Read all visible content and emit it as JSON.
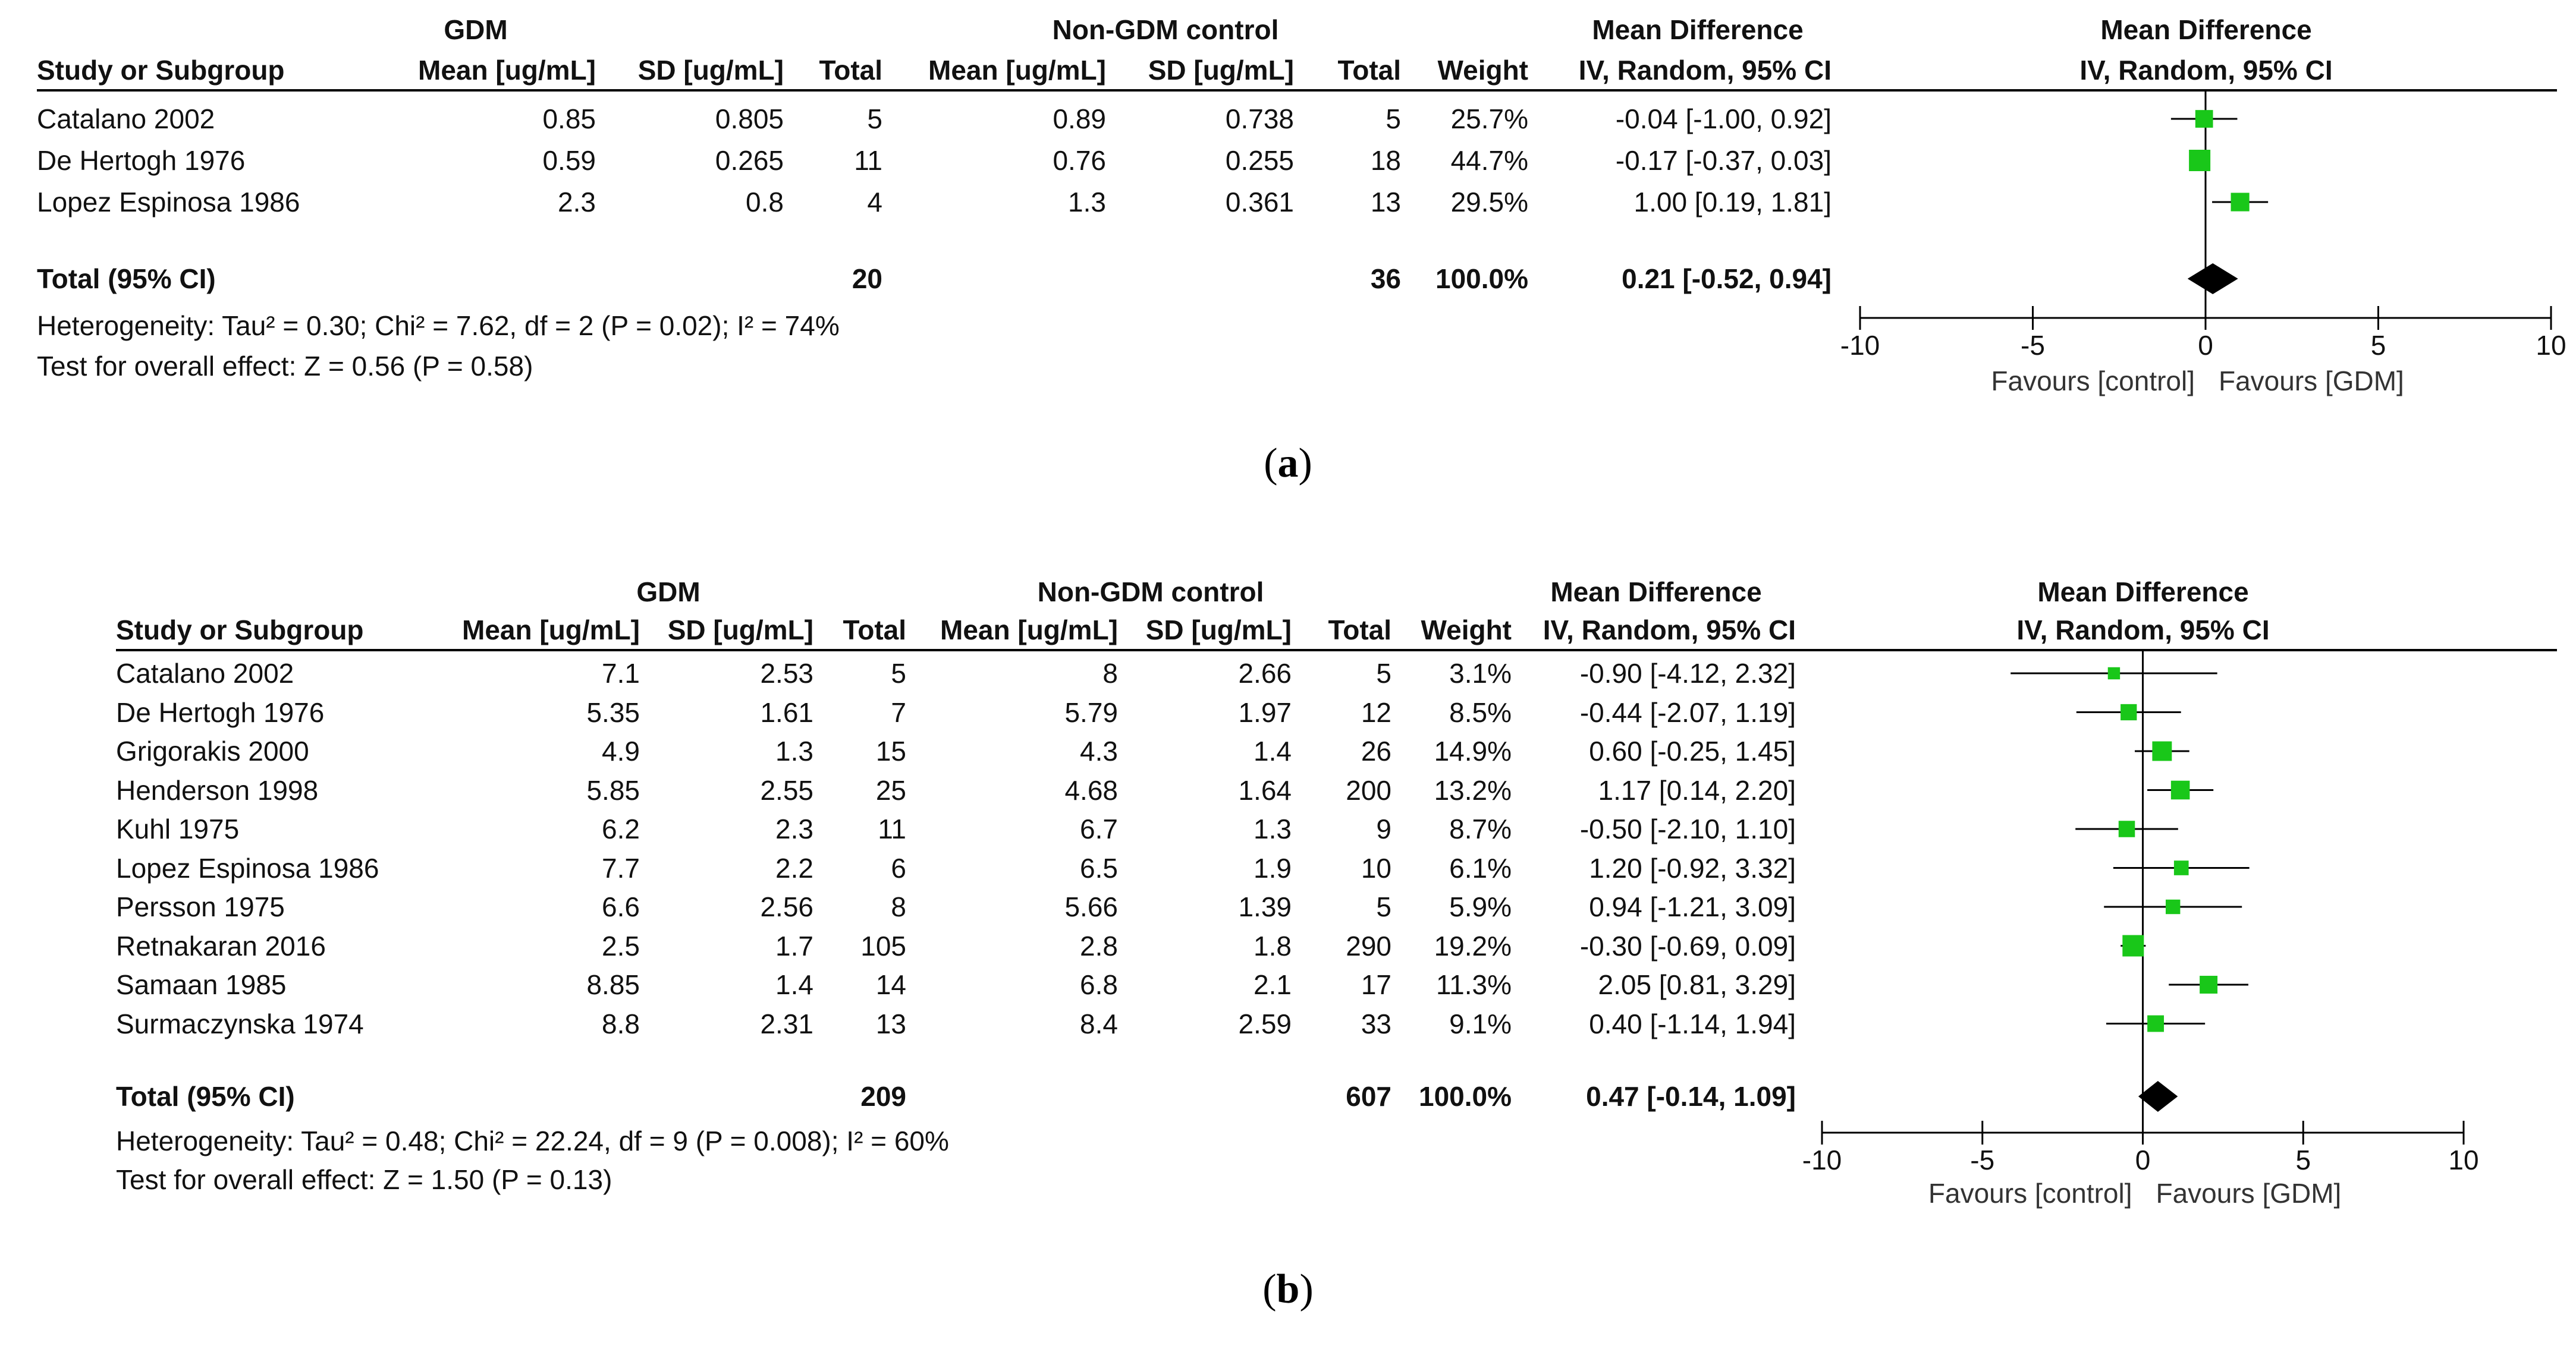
{
  "figures": [
    {
      "caption": "(a)",
      "caption_letter": "a",
      "header": {
        "group1": "GDM",
        "group2": "Non-GDM control",
        "effect": "Mean Difference",
        "effect_method": "IV, Random, 95% CI",
        "plot_title": "Mean Difference",
        "plot_method": "IV, Random, 95% CI",
        "col_study": "Study or Subgroup",
        "col_mean1": "Mean [ug/mL]",
        "col_sd1": "SD [ug/mL]",
        "col_total1": "Total",
        "col_mean2": "Mean [ug/mL]",
        "col_sd2": "SD [ug/mL]",
        "col_total2": "Total",
        "col_weight": "Weight"
      },
      "rows": [
        {
          "study": "Catalano 2002",
          "mean1": "0.85",
          "sd1": "0.805",
          "total1": "5",
          "mean2": "0.89",
          "sd2": "0.738",
          "total2": "5",
          "weight": "25.7%",
          "ci": "-0.04 [-1.00, 0.92]"
        },
        {
          "study": "De Hertogh 1976",
          "mean1": "0.59",
          "sd1": "0.265",
          "total1": "11",
          "mean2": "0.76",
          "sd2": "0.255",
          "total2": "18",
          "weight": "44.7%",
          "ci": "-0.17 [-0.37, 0.03]"
        },
        {
          "study": "Lopez Espinosa 1986",
          "mean1": "2.3",
          "sd1": "0.8",
          "total1": "4",
          "mean2": "1.3",
          "sd2": "0.361",
          "total2": "13",
          "weight": "29.5%",
          "ci": "1.00 [0.19, 1.81]"
        }
      ],
      "total": {
        "label": "Total (95% CI)",
        "total1": "20",
        "total2": "36",
        "weight": "100.0%",
        "ci": "0.21 [-0.52, 0.94]"
      },
      "heterogeneity": "Heterogeneity: Tau² = 0.30; Chi² = 7.62, df = 2 (P = 0.02); I² = 74%",
      "overall_effect": "Test for overall effect: Z = 0.56 (P = 0.58)",
      "favours_left": "Favours [control]",
      "favours_right": "Favours [GDM]"
    },
    {
      "caption": "(b)",
      "caption_letter": "b",
      "header": {
        "group1": "GDM",
        "group2": "Non-GDM control",
        "effect": "Mean Difference",
        "effect_method": "IV, Random, 95% CI",
        "plot_title": "Mean Difference",
        "plot_method": "IV, Random, 95% CI",
        "col_study": "Study or Subgroup",
        "col_mean1": "Mean [ug/mL]",
        "col_sd1": "SD [ug/mL]",
        "col_total1": "Total",
        "col_mean2": "Mean [ug/mL]",
        "col_sd2": "SD [ug/mL]",
        "col_total2": "Total",
        "col_weight": "Weight"
      },
      "rows": [
        {
          "study": "Catalano 2002",
          "mean1": "7.1",
          "sd1": "2.53",
          "total1": "5",
          "mean2": "8",
          "sd2": "2.66",
          "total2": "5",
          "weight": "3.1%",
          "ci": "-0.90 [-4.12, 2.32]"
        },
        {
          "study": "De Hertogh 1976",
          "mean1": "5.35",
          "sd1": "1.61",
          "total1": "7",
          "mean2": "5.79",
          "sd2": "1.97",
          "total2": "12",
          "weight": "8.5%",
          "ci": "-0.44 [-2.07, 1.19]"
        },
        {
          "study": "Grigorakis 2000",
          "mean1": "4.9",
          "sd1": "1.3",
          "total1": "15",
          "mean2": "4.3",
          "sd2": "1.4",
          "total2": "26",
          "weight": "14.9%",
          "ci": "0.60 [-0.25, 1.45]"
        },
        {
          "study": "Henderson 1998",
          "mean1": "5.85",
          "sd1": "2.55",
          "total1": "25",
          "mean2": "4.68",
          "sd2": "1.64",
          "total2": "200",
          "weight": "13.2%",
          "ci": "1.17 [0.14, 2.20]"
        },
        {
          "study": "Kuhl 1975",
          "mean1": "6.2",
          "sd1": "2.3",
          "total1": "11",
          "mean2": "6.7",
          "sd2": "1.3",
          "total2": "9",
          "weight": "8.7%",
          "ci": "-0.50 [-2.10, 1.10]"
        },
        {
          "study": "Lopez Espinosa 1986",
          "mean1": "7.7",
          "sd1": "2.2",
          "total1": "6",
          "mean2": "6.5",
          "sd2": "1.9",
          "total2": "10",
          "weight": "6.1%",
          "ci": "1.20 [-0.92, 3.32]"
        },
        {
          "study": "Persson 1975",
          "mean1": "6.6",
          "sd1": "2.56",
          "total1": "8",
          "mean2": "5.66",
          "sd2": "1.39",
          "total2": "5",
          "weight": "5.9%",
          "ci": "0.94 [-1.21, 3.09]"
        },
        {
          "study": "Retnakaran 2016",
          "mean1": "2.5",
          "sd1": "1.7",
          "total1": "105",
          "mean2": "2.8",
          "sd2": "1.8",
          "total2": "290",
          "weight": "19.2%",
          "ci": "-0.30 [-0.69, 0.09]"
        },
        {
          "study": "Samaan 1985",
          "mean1": "8.85",
          "sd1": "1.4",
          "total1": "14",
          "mean2": "6.8",
          "sd2": "2.1",
          "total2": "17",
          "weight": "11.3%",
          "ci": "2.05 [0.81, 3.29]"
        },
        {
          "study": "Surmaczynska 1974",
          "mean1": "8.8",
          "sd1": "2.31",
          "total1": "13",
          "mean2": "8.4",
          "sd2": "2.59",
          "total2": "33",
          "weight": "9.1%",
          "ci": "0.40 [-1.14, 1.94]"
        }
      ],
      "total": {
        "label": "Total (95% CI)",
        "total1": "209",
        "total2": "607",
        "weight": "100.0%",
        "ci": "0.47 [-0.14, 1.09]"
      },
      "heterogeneity": "Heterogeneity: Tau² = 0.48; Chi² = 22.24, df = 9 (P = 0.008); I² = 60%",
      "overall_effect": "Test for overall effect: Z = 1.50 (P = 0.13)",
      "favours_left": "Favours [control]",
      "favours_right": "Favours [GDM]"
    }
  ],
  "chart_data": [
    {
      "type": "forest",
      "title": "Mean Difference",
      "subtitle": "IV, Random, 95% CI",
      "xlim": [
        -10,
        10
      ],
      "xticks": [
        -10,
        -5,
        0,
        5,
        10
      ],
      "xtick_labels": [
        "-10",
        "-5",
        "0",
        "5",
        "10"
      ],
      "studies": [
        {
          "name": "Catalano 2002",
          "md": -0.04,
          "lo": -1.0,
          "hi": 0.92,
          "weight": 25.7
        },
        {
          "name": "De Hertogh 1976",
          "md": -0.17,
          "lo": -0.37,
          "hi": 0.03,
          "weight": 44.7
        },
        {
          "name": "Lopez Espinosa 1986",
          "md": 1.0,
          "lo": 0.19,
          "hi": 1.81,
          "weight": 29.5
        }
      ],
      "pooled": {
        "md": 0.21,
        "lo": -0.52,
        "hi": 0.94
      },
      "colors": {
        "study_marker": "#19c719",
        "pooled_marker": "#000000",
        "line": "#000000"
      }
    },
    {
      "type": "forest",
      "title": "Mean Difference",
      "subtitle": "IV, Random, 95% CI",
      "xlim": [
        -10,
        10
      ],
      "xticks": [
        -10,
        -5,
        0,
        5,
        10
      ],
      "xtick_labels": [
        "-10",
        "-5",
        "0",
        "5",
        "10"
      ],
      "studies": [
        {
          "name": "Catalano 2002",
          "md": -0.9,
          "lo": -4.12,
          "hi": 2.32,
          "weight": 3.1
        },
        {
          "name": "De Hertogh 1976",
          "md": -0.44,
          "lo": -2.07,
          "hi": 1.19,
          "weight": 8.5
        },
        {
          "name": "Grigorakis 2000",
          "md": 0.6,
          "lo": -0.25,
          "hi": 1.45,
          "weight": 14.9
        },
        {
          "name": "Henderson 1998",
          "md": 1.17,
          "lo": 0.14,
          "hi": 2.2,
          "weight": 13.2
        },
        {
          "name": "Kuhl 1975",
          "md": -0.5,
          "lo": -2.1,
          "hi": 1.1,
          "weight": 8.7
        },
        {
          "name": "Lopez Espinosa 1986",
          "md": 1.2,
          "lo": -0.92,
          "hi": 3.32,
          "weight": 6.1
        },
        {
          "name": "Persson 1975",
          "md": 0.94,
          "lo": -1.21,
          "hi": 3.09,
          "weight": 5.9
        },
        {
          "name": "Retnakaran 2016",
          "md": -0.3,
          "lo": -0.69,
          "hi": 0.09,
          "weight": 19.2
        },
        {
          "name": "Samaan 1985",
          "md": 2.05,
          "lo": 0.81,
          "hi": 3.29,
          "weight": 11.3
        },
        {
          "name": "Surmaczynska 1974",
          "md": 0.4,
          "lo": -1.14,
          "hi": 1.94,
          "weight": 9.1
        }
      ],
      "pooled": {
        "md": 0.47,
        "lo": -0.14,
        "hi": 1.09
      },
      "colors": {
        "study_marker": "#19c719",
        "pooled_marker": "#000000",
        "line": "#000000"
      }
    }
  ]
}
